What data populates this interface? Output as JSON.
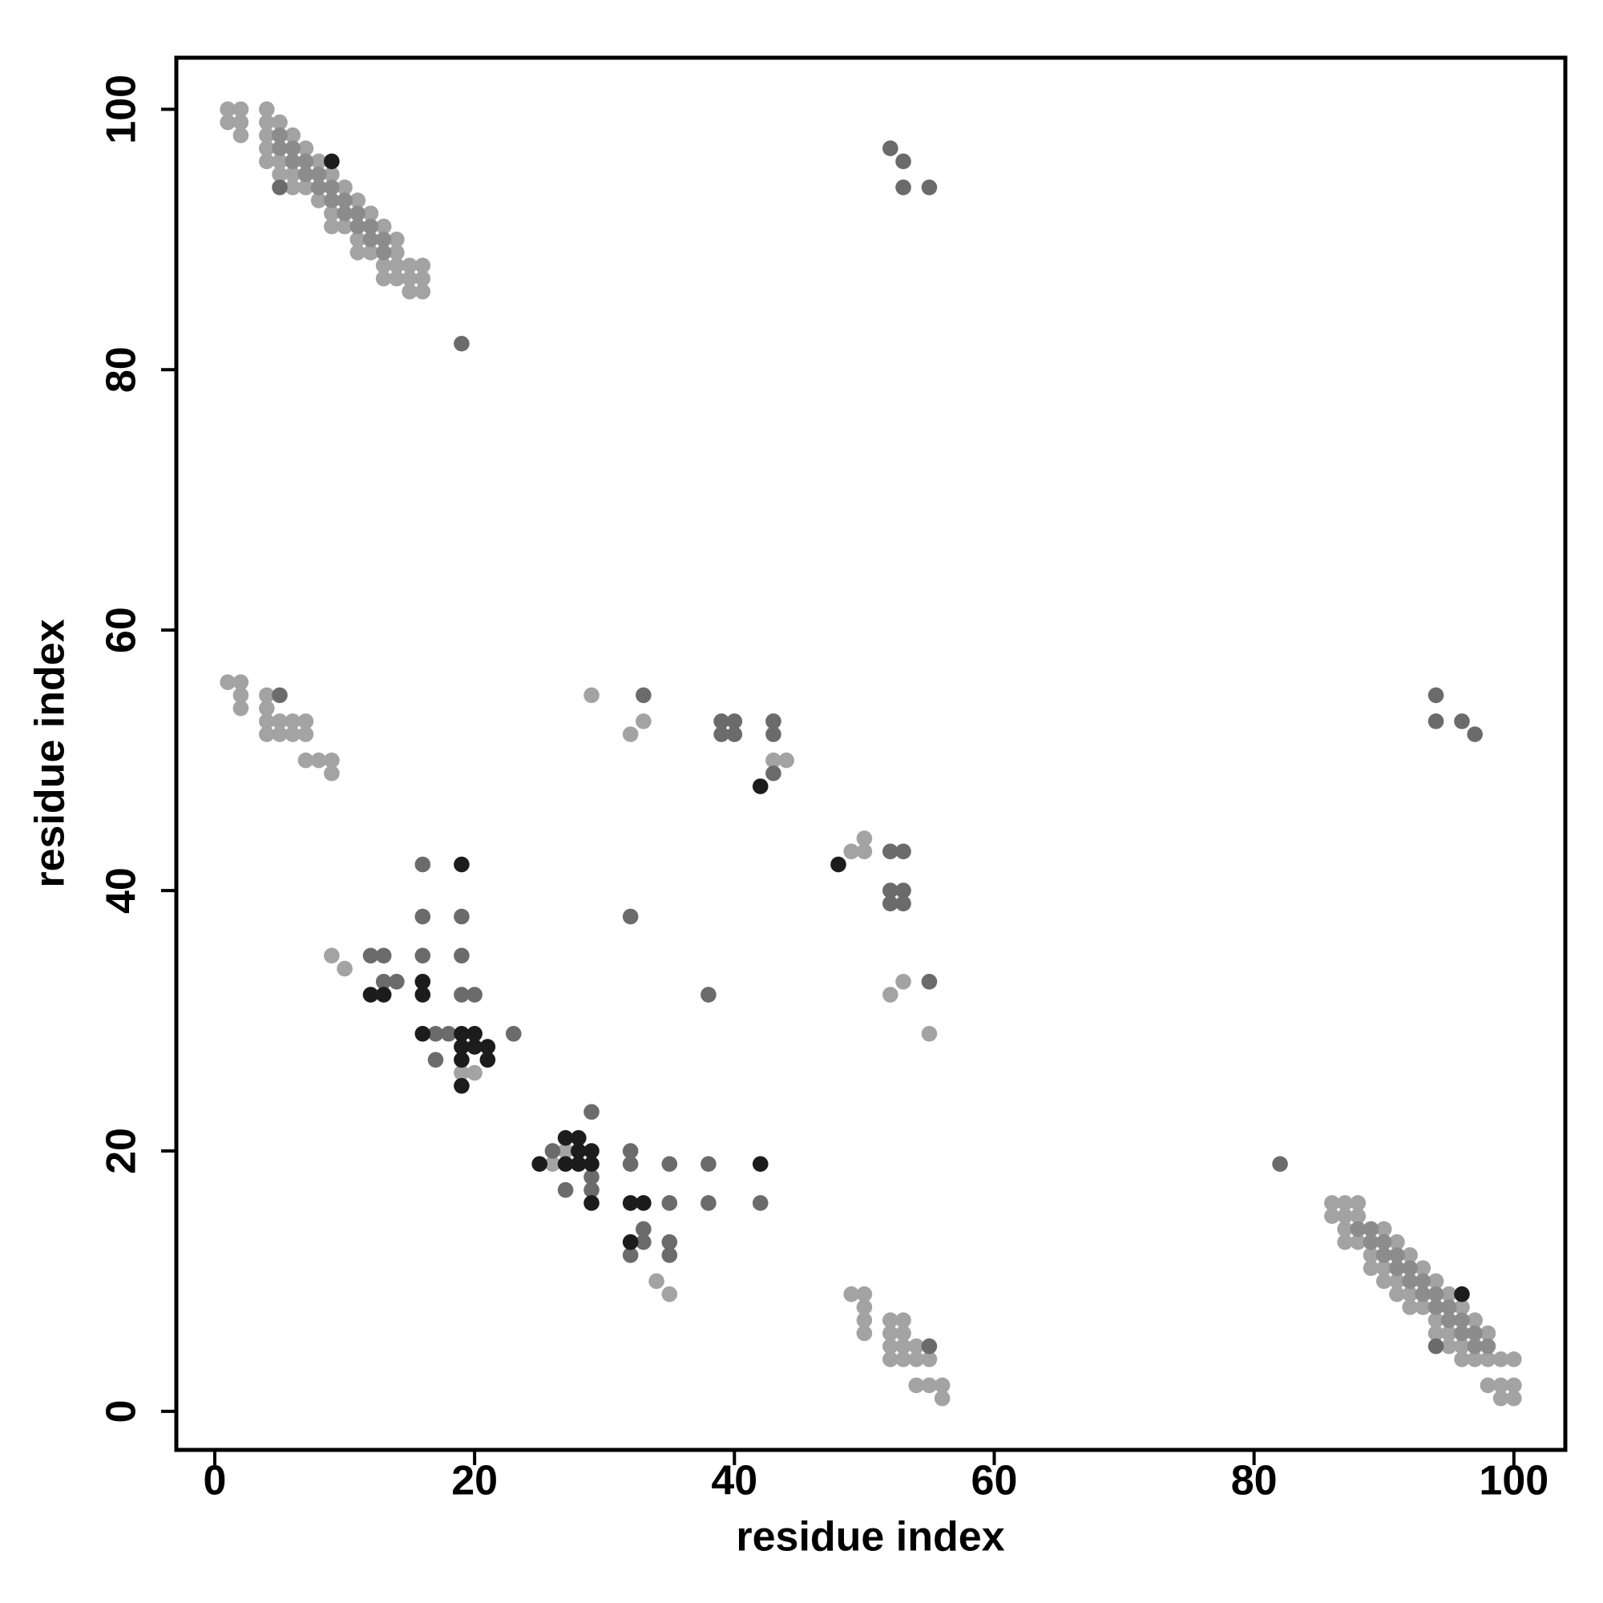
{
  "chart_data": {
    "type": "scatter",
    "xlabel": "residue index",
    "ylabel": "residue index",
    "xlim": [
      -2.96,
      103.96
    ],
    "ylim": [
      -2.96,
      103.96
    ],
    "xticks": [
      0,
      20,
      40,
      60,
      80,
      100
    ],
    "yticks": [
      0,
      20,
      40,
      60,
      80,
      100
    ],
    "grid": false,
    "series": [
      {
        "color": "#a3a3a3",
        "x": [
          86,
          87,
          88,
          86,
          87,
          88,
          87,
          90,
          87,
          88,
          91,
          89,
          92,
          89,
          90,
          93,
          90,
          91,
          94,
          91,
          92,
          95,
          92,
          93,
          96,
          94,
          97,
          94,
          95,
          98,
          95,
          96,
          96,
          97,
          98,
          99,
          100,
          98,
          99,
          100,
          99,
          100,
          1,
          2,
          4,
          1,
          2,
          4,
          5,
          2,
          4,
          6,
          4,
          7,
          4,
          5,
          8,
          5,
          6,
          9,
          6,
          7,
          10,
          8,
          11,
          9,
          12,
          9,
          10,
          13,
          11,
          14,
          11,
          12,
          14,
          13,
          14,
          15,
          16,
          13,
          14,
          15,
          16,
          15,
          16,
          1,
          2,
          2,
          2,
          4,
          4,
          4,
          4,
          5,
          5,
          6,
          6,
          7,
          7,
          7,
          8,
          9,
          9,
          29,
          32,
          33,
          43,
          44,
          49,
          50,
          50,
          52,
          53,
          55,
          9,
          10,
          19,
          20,
          27,
          26,
          34,
          35,
          49,
          50,
          50,
          50,
          50,
          52,
          53,
          52,
          53,
          52,
          53,
          54,
          52,
          53,
          54,
          55,
          54,
          55,
          56,
          56
        ],
        "y": [
          16,
          16,
          16,
          15,
          15,
          15,
          14,
          14,
          13,
          13,
          13,
          12,
          12,
          11,
          11,
          11,
          10,
          10,
          10,
          9,
          9,
          9,
          8,
          8,
          8,
          7,
          7,
          6,
          6,
          6,
          5,
          5,
          4,
          4,
          4,
          4,
          4,
          2,
          2,
          2,
          1,
          1,
          100,
          100,
          100,
          99,
          99,
          99,
          99,
          98,
          98,
          98,
          97,
          97,
          96,
          96,
          96,
          95,
          95,
          95,
          94,
          94,
          94,
          93,
          93,
          92,
          92,
          91,
          91,
          91,
          90,
          90,
          89,
          89,
          89,
          88,
          88,
          88,
          88,
          87,
          87,
          87,
          87,
          86,
          86,
          56,
          56,
          55,
          54,
          55,
          54,
          53,
          52,
          53,
          52,
          53,
          52,
          53,
          52,
          50,
          50,
          50,
          49,
          55,
          52,
          53,
          50,
          50,
          43,
          44,
          43,
          32,
          33,
          29,
          35,
          34,
          26,
          26,
          20,
          19,
          10,
          9,
          9,
          9,
          8,
          7,
          6,
          7,
          7,
          6,
          6,
          5,
          5,
          5,
          4,
          4,
          4,
          4,
          2,
          2,
          2,
          1
        ]
      },
      {
        "color": "#8c8c8c",
        "x": [
          88,
          89,
          89,
          90,
          90,
          91,
          91,
          92,
          92,
          93,
          93,
          94,
          94,
          95,
          95,
          96,
          96,
          97,
          97,
          98,
          5,
          5,
          6,
          6,
          7,
          7,
          8,
          8,
          9,
          9,
          10,
          10,
          11,
          11,
          12,
          12,
          13,
          13
        ],
        "y": [
          14,
          14,
          13,
          13,
          12,
          12,
          11,
          11,
          10,
          10,
          9,
          9,
          8,
          8,
          7,
          7,
          6,
          6,
          5,
          5,
          98,
          97,
          97,
          96,
          96,
          95,
          95,
          94,
          94,
          93,
          93,
          92,
          92,
          91,
          91,
          90,
          90,
          89
        ]
      },
      {
        "color": "#6b6b6b",
        "x": [
          52,
          53,
          53,
          55,
          19,
          5,
          94,
          5,
          33,
          39,
          40,
          39,
          40,
          43,
          43,
          43,
          94,
          94,
          96,
          97,
          52,
          53,
          52,
          53,
          52,
          53,
          55,
          16,
          16,
          19,
          32,
          12,
          13,
          16,
          19,
          13,
          14,
          19,
          20,
          38,
          23,
          17,
          29,
          32,
          32,
          35,
          38,
          35,
          38,
          42,
          82,
          55,
          17,
          18,
          26,
          29,
          27,
          29,
          33,
          33,
          35,
          35,
          32
        ],
        "y": [
          97,
          96,
          94,
          94,
          82,
          94,
          5,
          55,
          55,
          53,
          53,
          52,
          52,
          53,
          52,
          49,
          55,
          53,
          53,
          52,
          43,
          43,
          40,
          40,
          39,
          39,
          33,
          42,
          38,
          38,
          38,
          35,
          35,
          35,
          35,
          33,
          33,
          32,
          32,
          32,
          29,
          27,
          23,
          20,
          19,
          19,
          19,
          16,
          16,
          16,
          19,
          5,
          29,
          29,
          20,
          18,
          17,
          17,
          14,
          13,
          13,
          12,
          12
        ]
      },
      {
        "color": "#1c1c1c",
        "x": [
          9,
          96,
          42,
          48,
          19,
          42,
          16,
          12,
          13,
          16,
          16,
          19,
          20,
          19,
          20,
          21,
          19,
          21,
          19,
          27,
          28,
          28,
          29,
          25,
          27,
          28,
          29,
          29,
          32,
          33,
          32
        ],
        "y": [
          96,
          9,
          48,
          42,
          42,
          19,
          33,
          32,
          32,
          32,
          29,
          29,
          29,
          28,
          28,
          28,
          27,
          27,
          25,
          21,
          21,
          20,
          20,
          19,
          19,
          19,
          19,
          16,
          16,
          16,
          13
        ]
      }
    ]
  }
}
